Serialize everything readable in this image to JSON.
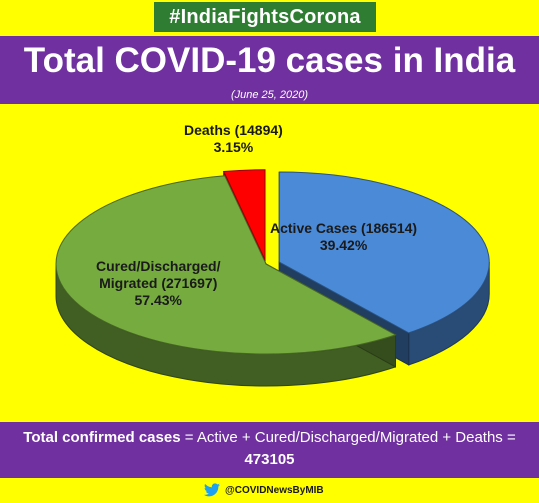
{
  "header": {
    "hashtag": "#IndiaFightsCorona",
    "title": "Total COVID-19 cases in India",
    "date": "(June 25, 2020)"
  },
  "chart_data": {
    "type": "pie",
    "title": "Total COVID-19 cases in India",
    "slices": [
      {
        "name": "Active Cases",
        "value": 186514,
        "percent": "39.42%",
        "label": "Active Cases (186514)",
        "color": "#4a8ad6"
      },
      {
        "name": "Cured/Discharged/Migrated",
        "value": 271697,
        "percent": "57.43%",
        "label_lines": [
          "Cured/Discharged/",
          "Migrated (271697)"
        ],
        "color": "#76ab3f"
      },
      {
        "name": "Deaths",
        "value": 14894,
        "percent": "3.15%",
        "label": "Deaths (14894)",
        "color": "#ff0000"
      }
    ]
  },
  "footer": {
    "prefix_bold": "Total confirmed cases",
    "formula": " = Active + Cured/Discharged/Migrated + Deaths = ",
    "total": "473105"
  },
  "credit": {
    "handle": "@COVIDNewsByMIB",
    "icon": "twitter-bird-icon"
  },
  "colors": {
    "background": "#ffff00",
    "band": "#7030a0",
    "hashtag_bg": "#2f7d32"
  }
}
